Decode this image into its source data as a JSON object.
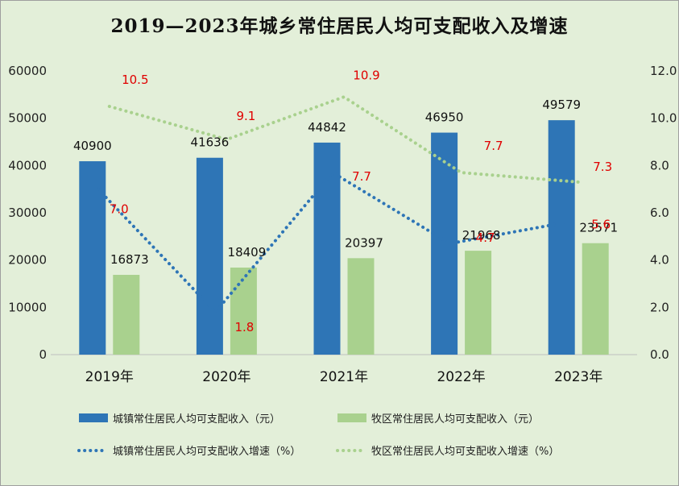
{
  "chart_data": {
    "type": "bar+line",
    "title": "2019—2023年城乡常住居民人均可支配收入及增速",
    "categories": [
      "2019年",
      "2020年",
      "2021年",
      "2022年",
      "2023年"
    ],
    "y_left": {
      "ylim": [
        0,
        60000
      ],
      "ticks": [
        "0",
        "10000",
        "20000",
        "30000",
        "40000",
        "50000",
        "60000"
      ]
    },
    "y_right": {
      "ylim": [
        0,
        12
      ],
      "ticks": [
        "0.0",
        "2.0",
        "4.0",
        "6.0",
        "8.0",
        "10.0",
        "12.0"
      ]
    },
    "series": [
      {
        "name": "城镇常住居民人均可支配收入（元）",
        "kind": "bar",
        "axis": "left",
        "color": "#2e75b6",
        "values": [
          40900,
          41636,
          44842,
          46950,
          49579
        ],
        "labels": [
          "40900",
          "41636",
          "44842",
          "46950",
          "49579"
        ]
      },
      {
        "name": "牧区常住居民人均可支配收入（元）",
        "kind": "bar",
        "axis": "left",
        "color": "#a9d18e",
        "values": [
          16873,
          18409,
          20397,
          21968,
          23571
        ],
        "labels": [
          "16873",
          "18409",
          "20397",
          "21968",
          "23571"
        ]
      },
      {
        "name": "城镇常住居民人均可支配收入增速（%）",
        "kind": "line",
        "axis": "right",
        "color": "#2e75b6",
        "values": [
          7.0,
          1.8,
          7.7,
          4.7,
          5.6
        ],
        "labels": [
          "7.0",
          "1.8",
          "7.7",
          "4.7",
          "5.6"
        ]
      },
      {
        "name": "牧区常住居民人均可支配收入增速（%）",
        "kind": "line",
        "axis": "right",
        "color": "#a9d18e",
        "values": [
          10.5,
          9.1,
          10.9,
          7.7,
          7.3
        ],
        "labels": [
          "10.5",
          "9.1",
          "10.9",
          "7.7",
          "7.3"
        ]
      }
    ],
    "grid": false,
    "legend": "bottom"
  }
}
